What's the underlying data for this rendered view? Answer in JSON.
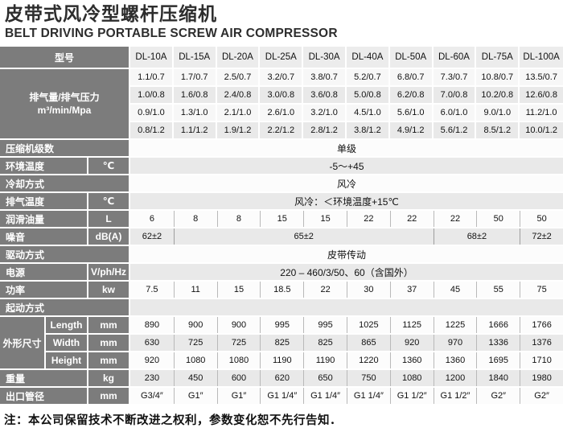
{
  "page": {
    "title": "皮带式风冷型螺杆压缩机",
    "subtitle": "BELT DRIVING PORTABLE SCREW AIR COMPRESSOR",
    "footer_note": "注：本公司保留技术不断改进之权利，参数变化恕不先行告知．"
  },
  "colors": {
    "label_bg": "#7c7c7c",
    "label_text": "#ffffff",
    "header_cell_bg": "#ececec",
    "stripe_gray": "#e9e9e9",
    "stripe_white": "#fcfcfc",
    "divider": "#b9b9b9",
    "text": "#111111"
  },
  "table": {
    "header_label": "型号",
    "models": [
      "DL-10A",
      "DL-15A",
      "DL-20A",
      "DL-25A",
      "DL-30A",
      "DL-40A",
      "DL-50A",
      "DL-60A",
      "DL-75A",
      "DL-100A"
    ],
    "discharge": {
      "label_line1": "排气量/排气压力",
      "label_line2": "m³/min/Mpa",
      "rows": [
        [
          "1.1/0.7",
          "1.7/0.7",
          "2.5/0.7",
          "3.2/0.7",
          "3.8/0.7",
          "5.2/0.7",
          "6.8/0.7",
          "7.3/0.7",
          "10.8/0.7",
          "13.5/0.7"
        ],
        [
          "1.0/0.8",
          "1.6/0.8",
          "2.4/0.8",
          "3.0/0.8",
          "3.6/0.8",
          "5.0/0.8",
          "6.2/0.8",
          "7.0/0.8",
          "10.2/0.8",
          "12.6/0.8"
        ],
        [
          "0.9/1.0",
          "1.3/1.0",
          "2.1/1.0",
          "2.6/1.0",
          "3.2/1.0",
          "4.5/1.0",
          "5.6/1.0",
          "6.0/1.0",
          "9.0/1.0",
          "11.2/1.0"
        ],
        [
          "0.8/1.2",
          "1.1/1.2",
          "1.9/1.2",
          "2.2/1.2",
          "2.8/1.2",
          "3.8/1.2",
          "4.9/1.2",
          "5.6/1.2",
          "8.5/1.2",
          "10.0/1.2"
        ]
      ]
    },
    "spec_rows": [
      {
        "label": "压缩机级数",
        "type": "span",
        "value": "单级"
      },
      {
        "label": "环境温度",
        "unit": "℃",
        "type": "span",
        "value": "-5～+45"
      },
      {
        "label": "冷却方式",
        "type": "span",
        "value": "风冷"
      },
      {
        "label": "排气温度",
        "unit": "℃",
        "type": "span",
        "value": "风冷：＜环境温度+15℃"
      },
      {
        "label": "润滑油量",
        "unit": "L",
        "type": "cells",
        "values": [
          "6",
          "8",
          "8",
          "15",
          "15",
          "22",
          "22",
          "22",
          "50",
          "50"
        ]
      },
      {
        "label": "噪音",
        "unit": "dB(A)",
        "type": "merged",
        "groups": [
          {
            "value": "62±2",
            "span": 1
          },
          {
            "value": "65±2",
            "span": 6
          },
          {
            "value": "68±2",
            "span": 2
          },
          {
            "value": "72±2",
            "span": 1
          }
        ]
      },
      {
        "label": "驱动方式",
        "type": "span",
        "value": "皮带传动"
      },
      {
        "label": "电源",
        "unit": "V/ph/Hz",
        "type": "span",
        "value": "220 – 460/3/50、60（含国外）"
      },
      {
        "label": "功率",
        "unit": "kw",
        "type": "cells",
        "values": [
          "7.5",
          "11",
          "15",
          "18.5",
          "22",
          "30",
          "37",
          "45",
          "55",
          "75"
        ]
      },
      {
        "label": "起动方式",
        "type": "span",
        "value": ""
      },
      {
        "group": "外形尺寸",
        "label": "Length",
        "unit": "mm",
        "type": "cells",
        "values": [
          "890",
          "900",
          "900",
          "995",
          "995",
          "1025",
          "1125",
          "1225",
          "1666",
          "1766"
        ]
      },
      {
        "group": "外形尺寸",
        "label": "Width",
        "unit": "mm",
        "type": "cells",
        "values": [
          "630",
          "725",
          "725",
          "825",
          "825",
          "865",
          "920",
          "970",
          "1336",
          "1376"
        ]
      },
      {
        "group": "外形尺寸",
        "label": "Height",
        "unit": "mm",
        "type": "cells",
        "values": [
          "920",
          "1080",
          "1080",
          "1190",
          "1190",
          "1220",
          "1360",
          "1360",
          "1695",
          "1710"
        ]
      },
      {
        "label": "重量",
        "unit": "kg",
        "type": "cells",
        "values": [
          "230",
          "450",
          "600",
          "620",
          "650",
          "750",
          "1080",
          "1200",
          "1840",
          "1980"
        ]
      },
      {
        "label": "出口管径",
        "unit": "mm",
        "type": "cells",
        "values": [
          "G3/4″",
          "G1″",
          "G1″",
          "G1 1/4″",
          "G1 1/4″",
          "G1 1/4″",
          "G1 1/2″",
          "G1 1/2″",
          "G2″",
          "G2″"
        ]
      }
    ]
  }
}
